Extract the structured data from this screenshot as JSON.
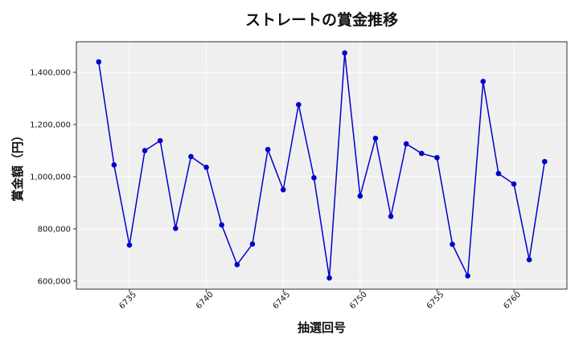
{
  "chart_data": {
    "type": "line",
    "title": "ストレートの賞金推移",
    "xlabel": "抽選回号",
    "ylabel": "賞金額（円）",
    "x": [
      6733,
      6734,
      6735,
      6736,
      6737,
      6738,
      6739,
      6740,
      6741,
      6742,
      6743,
      6744,
      6745,
      6746,
      6747,
      6748,
      6749,
      6750,
      6751,
      6752,
      6753,
      6754,
      6755,
      6756,
      6757,
      6758,
      6759,
      6760,
      6761,
      6762
    ],
    "series": [
      {
        "values": [
          1440000,
          1045000,
          738000,
          1100000,
          1138000,
          802000,
          1077000,
          1036000,
          815000,
          663000,
          742000,
          1104000,
          950000,
          1276000,
          996000,
          612000,
          1474000,
          926000,
          1147000,
          848000,
          1126000,
          1089000,
          1073000,
          741000,
          620000,
          1365000,
          1012000,
          972000,
          682000,
          1058000
        ],
        "color": "#0000cc"
      }
    ],
    "xticks": [
      6735,
      6740,
      6745,
      6750,
      6755,
      6760
    ],
    "yticks": [
      600000,
      800000,
      1000000,
      1200000,
      1400000
    ],
    "ytick_labels": [
      "600,000",
      "800,000",
      "1,000,000",
      "1,200,000",
      "1,400,000"
    ],
    "xlim": [
      6731.55,
      6763.45
    ],
    "ylim": [
      569000,
      1517000
    ],
    "grid": true,
    "colors": {
      "background": "#efefef",
      "grid": "#ffffff",
      "line": "#0000cc",
      "marker": "#0000cc"
    }
  }
}
